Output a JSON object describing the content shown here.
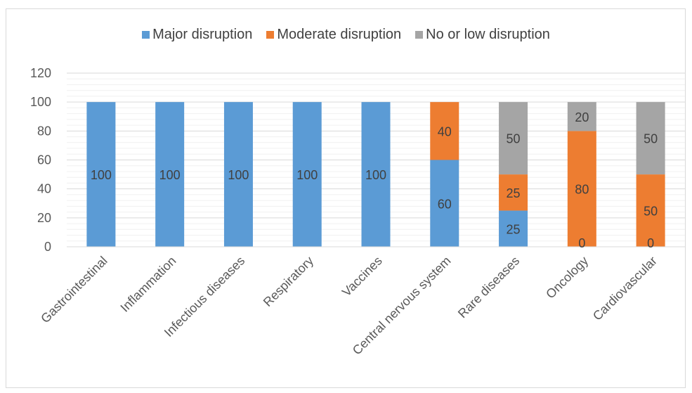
{
  "chart_data": {
    "type": "bar",
    "stacked": true,
    "categories": [
      "Gastrointestinal",
      "Inflammation",
      "Infectious diseases",
      "Respiratory",
      "Vaccines",
      "Central nervous system",
      "Rare diseases",
      "Oncology",
      "Cardiovascular"
    ],
    "series": [
      {
        "name": "Major disruption",
        "color": "#5b9bd5",
        "values": [
          100,
          100,
          100,
          100,
          100,
          60,
          25,
          0,
          0
        ]
      },
      {
        "name": "Moderate disruption",
        "color": "#ed7d31",
        "values": [
          0,
          0,
          0,
          0,
          0,
          40,
          25,
          80,
          50
        ]
      },
      {
        "name": "No or low disruption",
        "color": "#a5a5a5",
        "values": [
          0,
          0,
          0,
          0,
          0,
          0,
          50,
          20,
          50
        ]
      }
    ],
    "data_labels": [
      {
        "category": "Gastrointestinal",
        "series": "Major disruption",
        "text": "100"
      },
      {
        "category": "Inflammation",
        "series": "Major disruption",
        "text": "100"
      },
      {
        "category": "Infectious diseases",
        "series": "Major disruption",
        "text": "100"
      },
      {
        "category": "Respiratory",
        "series": "Major disruption",
        "text": "100"
      },
      {
        "category": "Vaccines",
        "series": "Major disruption",
        "text": "100"
      },
      {
        "category": "Central nervous system",
        "series": "Major disruption",
        "text": "60"
      },
      {
        "category": "Central nervous system",
        "series": "Moderate disruption",
        "text": "40"
      },
      {
        "category": "Rare diseases",
        "series": "Major disruption",
        "text": "25"
      },
      {
        "category": "Rare diseases",
        "series": "Moderate disruption",
        "text": "25"
      },
      {
        "category": "Rare diseases",
        "series": "No or low disruption",
        "text": "50"
      },
      {
        "category": "Oncology",
        "series": "Major disruption",
        "text": "0"
      },
      {
        "category": "Oncology",
        "series": "Moderate disruption",
        "text": "80"
      },
      {
        "category": "Oncology",
        "series": "No or low disruption",
        "text": "20"
      },
      {
        "category": "Cardiovascular",
        "series": "Major disruption",
        "text": "0"
      },
      {
        "category": "Cardiovascular",
        "series": "Moderate disruption",
        "text": "50"
      },
      {
        "category": "Cardiovascular",
        "series": "No or low disruption",
        "text": "50"
      }
    ],
    "yticks": [
      "0",
      "20",
      "40",
      "60",
      "80",
      "100",
      "120"
    ],
    "ylim": [
      0,
      120
    ],
    "grid": true,
    "legend_position": "top",
    "title": "",
    "xlabel": "",
    "ylabel": ""
  }
}
